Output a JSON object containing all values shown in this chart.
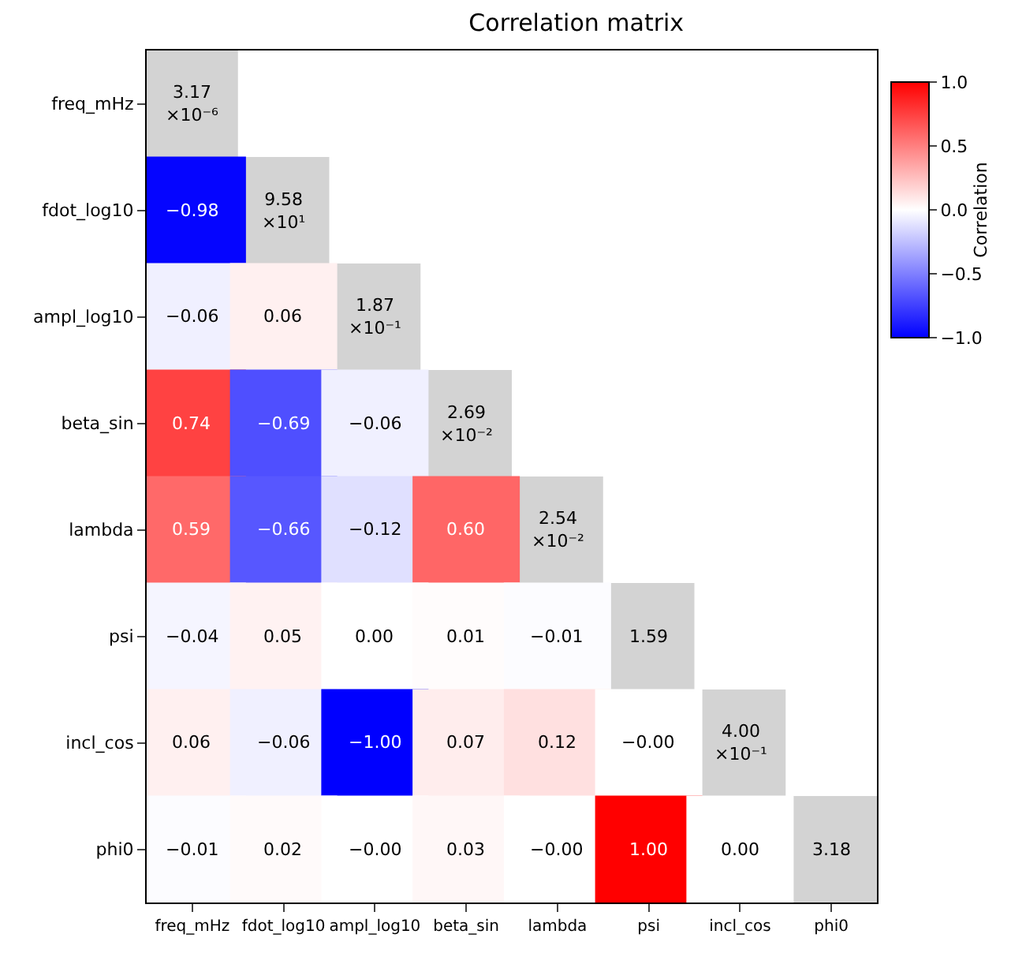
{
  "chart_data": {
    "type": "heatmap",
    "title": "Correlation matrix",
    "clabel": "Correlation",
    "categories": [
      "freq_mHz",
      "fdot_log10",
      "ampl_log10",
      "beta_sin",
      "lambda",
      "psi",
      "incl_cos",
      "phi0"
    ],
    "y_categories": [
      "freq_mHz",
      "fdot_log10",
      "ampl_log10",
      "beta_sin",
      "lambda",
      "psi",
      "incl_cos",
      "phi0"
    ],
    "cells": [
      [
        null,
        null,
        null,
        null,
        null,
        null,
        null,
        null
      ],
      [
        -0.98,
        null,
        null,
        null,
        null,
        null,
        null,
        null
      ],
      [
        -0.06,
        0.06,
        null,
        null,
        null,
        null,
        null,
        null
      ],
      [
        0.74,
        -0.69,
        -0.06,
        null,
        null,
        null,
        null,
        null
      ],
      [
        0.59,
        -0.66,
        -0.12,
        0.6,
        null,
        null,
        null,
        null
      ],
      [
        -0.04,
        0.05,
        0.0,
        0.01,
        -0.01,
        null,
        null,
        null
      ],
      [
        0.06,
        -0.06,
        -1.0,
        0.07,
        0.12,
        -0.0,
        null,
        null
      ],
      [
        -0.01,
        0.02,
        -0.0,
        0.03,
        -0.0,
        1.0,
        0.0,
        null
      ]
    ],
    "cell_labels": [
      [
        "3.17\n×10⁻⁶",
        null,
        null,
        null,
        null,
        null,
        null,
        null
      ],
      [
        "−0.98",
        "9.58\n×10¹",
        null,
        null,
        null,
        null,
        null,
        null
      ],
      [
        "−0.06",
        "0.06",
        "1.87\n×10⁻¹",
        null,
        null,
        null,
        null,
        null
      ],
      [
        "0.74",
        "−0.69",
        "−0.06",
        "2.69\n×10⁻²",
        null,
        null,
        null,
        null
      ],
      [
        "0.59",
        "−0.66",
        "−0.12",
        "0.60",
        "2.54\n×10⁻²",
        null,
        null,
        null
      ],
      [
        "−0.04",
        "0.05",
        "0.00",
        "0.01",
        "−0.01",
        "1.59",
        null,
        null
      ],
      [
        "0.06",
        "−0.06",
        "−1.00",
        "0.07",
        "0.12",
        "−0.00",
        "4.00\n×10⁻¹",
        null
      ],
      [
        "−0.01",
        "0.02",
        "−0.00",
        "0.03",
        "−0.00",
        "1.00",
        "0.00",
        "3.18"
      ]
    ],
    "clim": [
      -1,
      1
    ],
    "cticks": [
      {
        "value": -1,
        "label": "−1.0"
      },
      {
        "value": -0.5,
        "label": "−0.5"
      },
      {
        "value": 0,
        "label": "0.0"
      },
      {
        "value": 0.5,
        "label": "0.5"
      },
      {
        "value": 1,
        "label": "1.0"
      }
    ],
    "grid": false
  }
}
